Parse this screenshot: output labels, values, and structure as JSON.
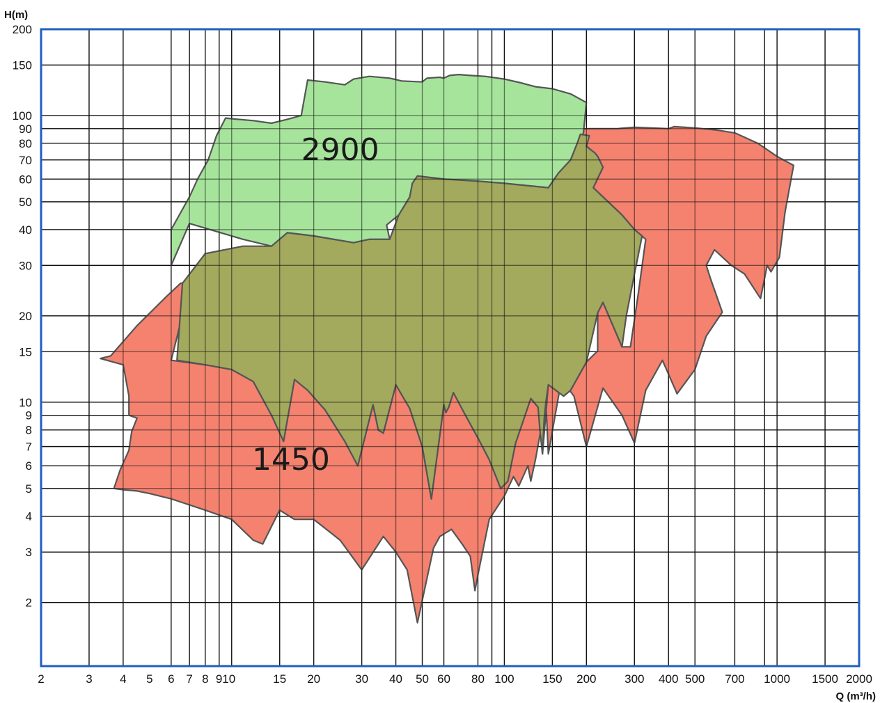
{
  "chart_data": {
    "type": "area",
    "title": "",
    "xlabel": "Q (m³/h)",
    "ylabel": "H(m)",
    "xscale": "log",
    "yscale": "log",
    "xlim": [
      2,
      2000
    ],
    "ylim": [
      1.2,
      200
    ],
    "grid": true,
    "x_ticks": [
      2,
      3,
      4,
      5,
      6,
      7,
      8,
      9,
      10,
      15,
      20,
      30,
      40,
      50,
      60,
      80,
      100,
      150,
      200,
      300,
      400,
      500,
      700,
      1000,
      1500,
      2000
    ],
    "x_tick_labels": [
      {
        "v": 2,
        "t": "2"
      },
      {
        "v": 3,
        "t": "3"
      },
      {
        "v": 4,
        "t": "4"
      },
      {
        "v": 5,
        "t": "5"
      },
      {
        "v": 6,
        "t": "6"
      },
      {
        "v": 7,
        "t": "7"
      },
      {
        "v": 8,
        "t": "8"
      },
      {
        "v": 9.5,
        "t": "910"
      },
      {
        "v": 15,
        "t": "15"
      },
      {
        "v": 20,
        "t": "20"
      },
      {
        "v": 30,
        "t": "30"
      },
      {
        "v": 40,
        "t": "40"
      },
      {
        "v": 50,
        "t": "50"
      },
      {
        "v": 60,
        "t": "60"
      },
      {
        "v": 80,
        "t": "80"
      },
      {
        "v": 100,
        "t": "100"
      },
      {
        "v": 150,
        "t": "150"
      },
      {
        "v": 200,
        "t": "200"
      },
      {
        "v": 300,
        "t": "300"
      },
      {
        "v": 400,
        "t": "400"
      },
      {
        "v": 500,
        "t": "500"
      },
      {
        "v": 700,
        "t": "700"
      },
      {
        "v": 1000,
        "t": "1000"
      },
      {
        "v": 1500,
        "t": "1500"
      },
      {
        "v": 2000,
        "t": "2000"
      }
    ],
    "x_grid": [
      3,
      4,
      6,
      7,
      8,
      9,
      10,
      15,
      20,
      30,
      40,
      50,
      60,
      80,
      90,
      100,
      150,
      200,
      300,
      400,
      500,
      700,
      900,
      1000,
      1500
    ],
    "y_ticks": [
      2,
      3,
      4,
      5,
      6,
      7,
      8,
      9,
      10,
      15,
      20,
      30,
      40,
      50,
      60,
      70,
      80,
      90,
      100,
      150,
      200
    ],
    "series": [
      {
        "name": "1450",
        "color": "#f4826f",
        "label_at": [
          16.5,
          5.8
        ],
        "points": [
          [
            3.3,
            14.2
          ],
          [
            3.6,
            14.5
          ],
          [
            4.5,
            18.5
          ],
          [
            5.8,
            23.5
          ],
          [
            6.5,
            26
          ],
          [
            6.7,
            26
          ],
          [
            6.5,
            19
          ],
          [
            6,
            14
          ],
          [
            8,
            13.5
          ],
          [
            10,
            13
          ],
          [
            12,
            11.8
          ],
          [
            14,
            9
          ],
          [
            15.5,
            7.3
          ],
          [
            17,
            12
          ],
          [
            19,
            11
          ],
          [
            22,
            9.4
          ],
          [
            26,
            7.3
          ],
          [
            29,
            6
          ],
          [
            33,
            9.8
          ],
          [
            34.5,
            8
          ],
          [
            36,
            7.8
          ],
          [
            40,
            11.5
          ],
          [
            45,
            9.5
          ],
          [
            50,
            7
          ],
          [
            54,
            4.6
          ],
          [
            60,
            9.8
          ],
          [
            61,
            9.2
          ],
          [
            62.5,
            9.6
          ],
          [
            65,
            10.8
          ],
          [
            72,
            9
          ],
          [
            80,
            7.5
          ],
          [
            88,
            6.3
          ],
          [
            97,
            5
          ],
          [
            103,
            5.3
          ],
          [
            110,
            7.2
          ],
          [
            125,
            10.3
          ],
          [
            133,
            9.6
          ],
          [
            138,
            6.6
          ],
          [
            145,
            11.5
          ],
          [
            165,
            10.5
          ],
          [
            175,
            11
          ],
          [
            200,
            13.8
          ],
          [
            220,
            15.1
          ],
          [
            220,
            20.5
          ],
          [
            230,
            22.3
          ],
          [
            270,
            15.6
          ],
          [
            290,
            15.6
          ],
          [
            310,
            24
          ],
          [
            330,
            37
          ],
          [
            300,
            40
          ],
          [
            270,
            45
          ],
          [
            230,
            52
          ],
          [
            212,
            56
          ],
          [
            230,
            66
          ],
          [
            220,
            72
          ],
          [
            185,
            84
          ],
          [
            175,
            88
          ],
          [
            200,
            90
          ],
          [
            260,
            90
          ],
          [
            300,
            91
          ],
          [
            400,
            90
          ],
          [
            420,
            91.5
          ],
          [
            500,
            90.5
          ],
          [
            600,
            89
          ],
          [
            700,
            87
          ],
          [
            850,
            80
          ],
          [
            1000,
            72
          ],
          [
            1150,
            67
          ],
          [
            1070,
            46
          ],
          [
            1020,
            32
          ],
          [
            950,
            28.5
          ],
          [
            920,
            30
          ],
          [
            870,
            23
          ],
          [
            760,
            28
          ],
          [
            680,
            30
          ],
          [
            590,
            34
          ],
          [
            550,
            30
          ],
          [
            570,
            27
          ],
          [
            630,
            20.6
          ],
          [
            550,
            17
          ],
          [
            500,
            13
          ],
          [
            430,
            10.7
          ],
          [
            380,
            14
          ],
          [
            330,
            11
          ],
          [
            300,
            7.2
          ],
          [
            270,
            9
          ],
          [
            230,
            11.2
          ],
          [
            200,
            7
          ],
          [
            180,
            10.5
          ],
          [
            162,
            12
          ],
          [
            145,
            6.6
          ],
          [
            142,
            10
          ],
          [
            130,
            6.3
          ],
          [
            125,
            5.3
          ],
          [
            122,
            6
          ],
          [
            113,
            5.1
          ],
          [
            108,
            5.5
          ],
          [
            100,
            4.7
          ],
          [
            88,
            3.9
          ],
          [
            80,
            2.5
          ],
          [
            78,
            2.2
          ],
          [
            75,
            2.9
          ],
          [
            70,
            3.2
          ],
          [
            64,
            3.6
          ],
          [
            58,
            3.4
          ],
          [
            55,
            3.1
          ],
          [
            48,
            1.7
          ],
          [
            44,
            2.6
          ],
          [
            40,
            3
          ],
          [
            36,
            3.4
          ],
          [
            30,
            2.6
          ],
          [
            25,
            3.3
          ],
          [
            20,
            3.9
          ],
          [
            17,
            3.9
          ],
          [
            15,
            4.2
          ],
          [
            13,
            3.2
          ],
          [
            12,
            3.3
          ],
          [
            10,
            3.9
          ],
          [
            8,
            4.2
          ],
          [
            6,
            4.6
          ],
          [
            5,
            4.8
          ],
          [
            4.5,
            4.9
          ],
          [
            4,
            4.95
          ],
          [
            3.7,
            5
          ],
          [
            3.9,
            5.8
          ],
          [
            4.2,
            6.8
          ],
          [
            4.3,
            7.9
          ],
          [
            4.5,
            8.8
          ],
          [
            4.2,
            9
          ],
          [
            4.2,
            10.5
          ],
          [
            4.0,
            13.5
          ]
        ]
      },
      {
        "name": "2900",
        "color": "#a6e49c",
        "label_at": [
          25,
          70
        ],
        "points": [
          [
            6,
            40
          ],
          [
            7,
            52
          ],
          [
            7.5,
            60
          ],
          [
            8.2,
            70
          ],
          [
            8.8,
            85
          ],
          [
            9.5,
            98
          ],
          [
            10.5,
            97
          ],
          [
            12,
            96
          ],
          [
            14,
            94
          ],
          [
            16,
            97
          ],
          [
            18,
            100
          ],
          [
            19,
            133
          ],
          [
            22,
            131
          ],
          [
            26,
            128
          ],
          [
            28,
            134
          ],
          [
            32,
            137
          ],
          [
            38,
            135
          ],
          [
            42,
            132
          ],
          [
            50,
            131
          ],
          [
            52,
            135
          ],
          [
            58,
            136
          ],
          [
            60,
            135
          ],
          [
            63,
            138
          ],
          [
            68,
            139
          ],
          [
            75,
            138
          ],
          [
            85,
            137
          ],
          [
            100,
            134
          ],
          [
            115,
            130
          ],
          [
            130,
            126
          ],
          [
            150,
            124
          ],
          [
            175,
            119
          ],
          [
            200,
            111
          ],
          [
            195,
            87
          ],
          [
            185,
            80
          ],
          [
            175,
            70
          ],
          [
            158,
            63
          ],
          [
            145,
            56
          ],
          [
            120,
            57
          ],
          [
            100,
            58
          ],
          [
            80,
            59
          ],
          [
            60,
            60
          ],
          [
            48,
            61.5
          ],
          [
            46,
            58
          ],
          [
            45,
            52
          ],
          [
            41,
            45
          ],
          [
            37,
            41.5
          ],
          [
            38,
            37
          ],
          [
            32,
            37
          ],
          [
            28,
            36
          ],
          [
            20,
            38
          ],
          [
            16,
            39
          ],
          [
            14,
            35
          ],
          [
            11,
            37
          ],
          [
            7,
            42
          ],
          [
            6,
            30
          ]
        ]
      },
      {
        "name": "",
        "color": "#a3a95d",
        "points": [
          [
            6.3,
            14
          ],
          [
            6.6,
            26
          ],
          [
            8,
            33
          ],
          [
            11,
            35
          ],
          [
            14,
            35
          ],
          [
            16,
            39
          ],
          [
            20,
            38
          ],
          [
            28,
            36
          ],
          [
            32,
            37
          ],
          [
            38,
            37
          ],
          [
            41,
            45
          ],
          [
            45,
            52
          ],
          [
            46,
            58
          ],
          [
            48,
            61.5
          ],
          [
            60,
            60
          ],
          [
            80,
            59
          ],
          [
            100,
            58
          ],
          [
            120,
            57
          ],
          [
            145,
            56
          ],
          [
            158,
            63
          ],
          [
            175,
            70
          ],
          [
            185,
            80
          ],
          [
            190,
            86
          ],
          [
            205,
            85
          ],
          [
            200,
            78
          ],
          [
            215,
            74
          ],
          [
            220,
            72
          ],
          [
            230,
            66
          ],
          [
            212,
            56
          ],
          [
            230,
            52
          ],
          [
            270,
            45
          ],
          [
            300,
            40
          ],
          [
            320,
            38
          ],
          [
            300,
            28
          ],
          [
            280,
            20
          ],
          [
            270,
            15.6
          ],
          [
            230,
            22.3
          ],
          [
            220,
            20.5
          ],
          [
            200,
            13.8
          ],
          [
            175,
            11
          ],
          [
            165,
            10.5
          ],
          [
            145,
            11.5
          ],
          [
            142,
            10
          ],
          [
            140,
            8.8
          ],
          [
            138,
            6.6
          ],
          [
            135,
            8
          ],
          [
            133,
            9.6
          ],
          [
            125,
            10.3
          ],
          [
            110,
            7.2
          ],
          [
            103,
            5.3
          ],
          [
            97,
            5
          ],
          [
            88,
            6.3
          ],
          [
            80,
            7.5
          ],
          [
            72,
            9
          ],
          [
            65,
            10.8
          ],
          [
            62.5,
            9.6
          ],
          [
            61,
            9.2
          ],
          [
            60,
            9.8
          ],
          [
            54,
            4.6
          ],
          [
            50,
            7
          ],
          [
            45,
            9.5
          ],
          [
            40,
            11.5
          ],
          [
            36,
            7.8
          ],
          [
            34.5,
            8
          ],
          [
            33,
            9.8
          ],
          [
            29,
            6
          ],
          [
            26,
            7.3
          ],
          [
            22,
            9.4
          ],
          [
            19,
            11
          ],
          [
            17,
            12
          ],
          [
            15.5,
            7.3
          ],
          [
            14,
            9
          ],
          [
            12,
            11.8
          ],
          [
            10,
            13
          ],
          [
            8,
            13.5
          ]
        ]
      }
    ]
  }
}
